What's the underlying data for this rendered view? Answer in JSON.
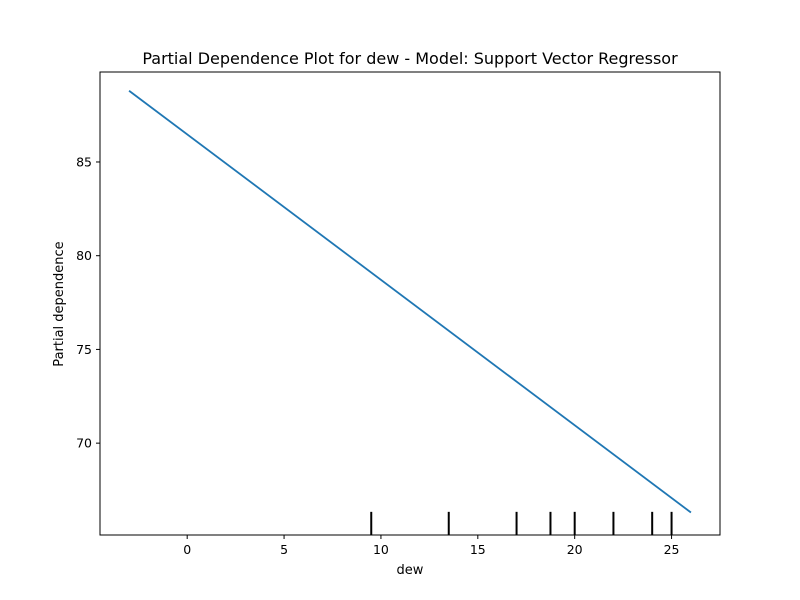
{
  "chart_data": {
    "type": "line",
    "title": "Partial Dependence Plot for dew - Model: Support Vector Regressor",
    "xlabel": "dew",
    "ylabel": "Partial dependence",
    "xlim": [
      -4.5,
      27.5
    ],
    "ylim": [
      65.1,
      89.8
    ],
    "xticks": [
      0,
      5,
      10,
      15,
      20,
      25
    ],
    "yticks": [
      70,
      75,
      80,
      85
    ],
    "grid": false,
    "series": [
      {
        "color": "#1f77b4",
        "x": [
          -3,
          26
        ],
        "y": [
          88.8,
          66.3
        ]
      }
    ],
    "deciles": [
      9.5,
      13.5,
      17,
      18.75,
      20,
      22,
      24,
      25
    ],
    "decile_color": "#000000"
  }
}
